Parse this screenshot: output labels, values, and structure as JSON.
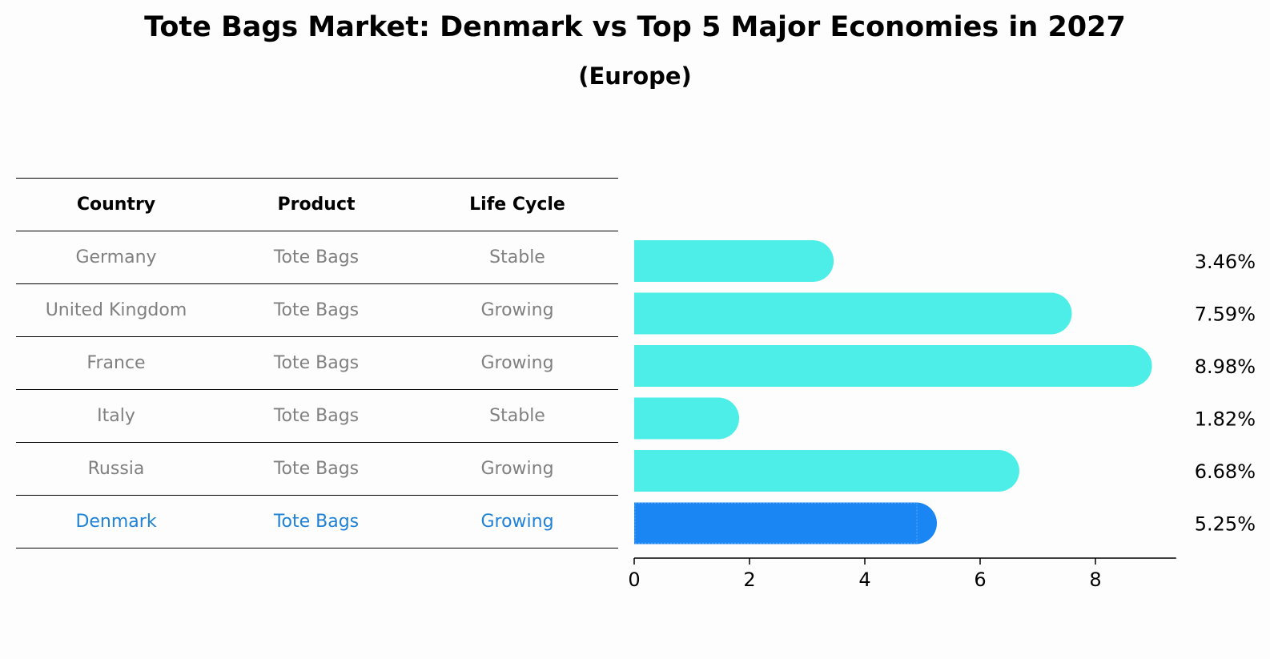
{
  "title": "Tote Bags Market: Denmark vs Top 5 Major Economies in 2027",
  "subtitle": "(Europe)",
  "table": {
    "headers": [
      "Country",
      "Product",
      "Life Cycle"
    ],
    "rows": [
      {
        "country": "Germany",
        "product": "Tote Bags",
        "life_cycle": "Stable",
        "highlight": false
      },
      {
        "country": "United Kingdom",
        "product": "Tote Bags",
        "life_cycle": "Growing",
        "highlight": false
      },
      {
        "country": "France",
        "product": "Tote Bags",
        "life_cycle": "Growing",
        "highlight": false
      },
      {
        "country": "Italy",
        "product": "Tote Bags",
        "life_cycle": "Stable",
        "highlight": false
      },
      {
        "country": "Russia",
        "product": "Tote Bags",
        "life_cycle": "Growing",
        "highlight": false
      },
      {
        "country": "Denmark",
        "product": "Tote Bags",
        "life_cycle": "Growing",
        "highlight": true
      }
    ]
  },
  "colors": {
    "bar": "#4deee8",
    "highlight_bar": "#1a86f4",
    "highlight_text": "#1f82d6",
    "muted_text": "#808080"
  },
  "chart_data": {
    "type": "bar",
    "orientation": "horizontal",
    "categories": [
      "Germany",
      "United Kingdom",
      "France",
      "Italy",
      "Russia",
      "Denmark"
    ],
    "values": [
      3.46,
      7.59,
      8.98,
      1.82,
      6.68,
      5.25
    ],
    "value_labels": [
      "3.46%",
      "7.59%",
      "8.98%",
      "1.82%",
      "6.68%",
      "5.25%"
    ],
    "highlight_category": "Denmark",
    "xticks": [
      0,
      2,
      4,
      6,
      8
    ],
    "xlim": [
      0,
      9.4
    ],
    "xlabel": "",
    "ylabel": "",
    "grid": false,
    "legend": "none"
  }
}
